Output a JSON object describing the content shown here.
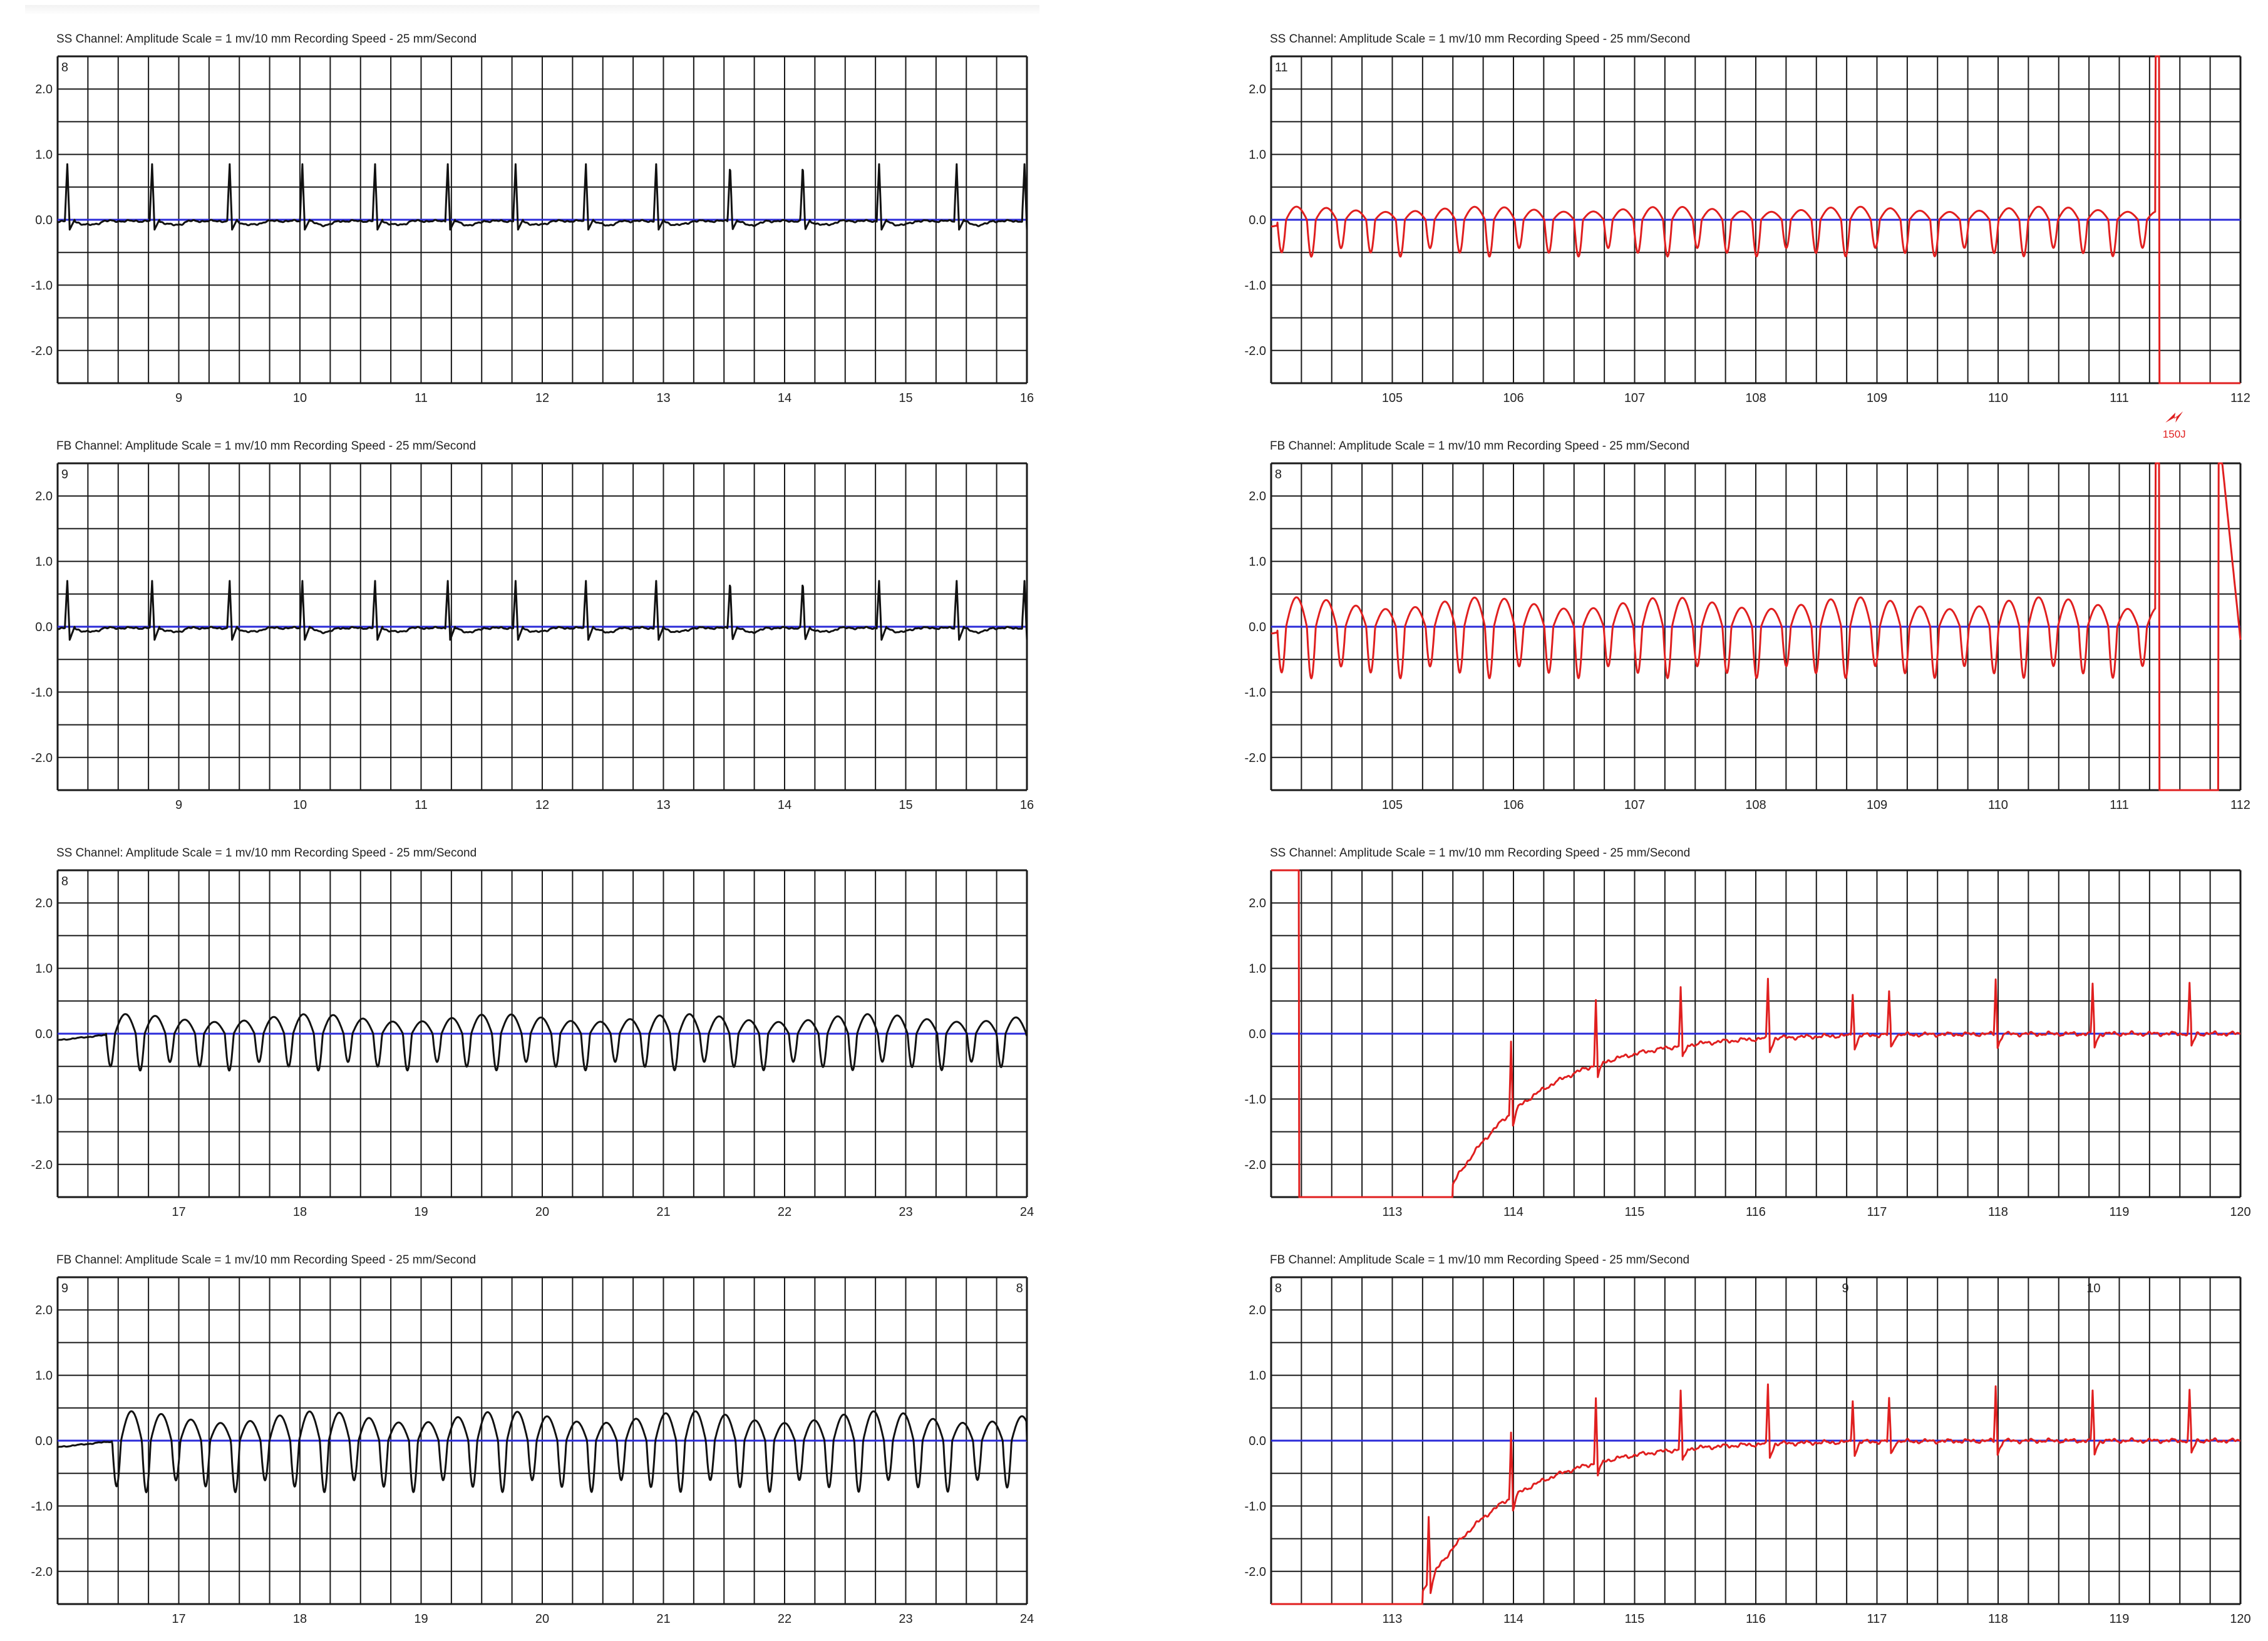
{
  "colors": {
    "grid": "#1a1a1a",
    "baseline": "#2b2bd9",
    "left_trace": "#111111",
    "right_trace": "#e01f1f",
    "marker": "#e01f1f"
  },
  "strips": [
    {
      "id": "left-1",
      "header": "SS Channel: Amplitude Scale = 1 mv/10 mm     Recording Speed - 25 mm/Second",
      "corner_labels": [
        {
          "text": "8",
          "t": 8.02
        }
      ],
      "y_ticks": [
        "2.0",
        "1.0",
        "0.0",
        "-1.0",
        "-2.0"
      ],
      "x_ticks": [
        "9",
        "10",
        "11",
        "12",
        "13",
        "14",
        "15",
        "16"
      ],
      "x_range": [
        8,
        16
      ],
      "y_range": [
        -2.5,
        2.5
      ],
      "trace": {
        "kind": "qrs",
        "beats": [
          8.08,
          8.78,
          9.42,
          10.02,
          10.62,
          11.22,
          11.78,
          12.36,
          12.94,
          13.55,
          14.15,
          14.78,
          15.42,
          15.98
        ],
        "amp": 0.85,
        "neg": -0.15
      }
    },
    {
      "id": "left-2",
      "header": "FB Channel: Amplitude Scale = 1 mv/10 mm     Recording Speed - 25 mm/Second",
      "corner_labels": [
        {
          "text": "9",
          "t": 8.02
        }
      ],
      "y_ticks": [
        "2.0",
        "1.0",
        "0.0",
        "-1.0",
        "-2.0"
      ],
      "x_ticks": [
        "9",
        "10",
        "11",
        "12",
        "13",
        "14",
        "15",
        "16"
      ],
      "x_range": [
        8,
        16
      ],
      "y_range": [
        -2.5,
        2.5
      ],
      "trace": {
        "kind": "qrs",
        "beats": [
          8.08,
          8.78,
          9.42,
          10.02,
          10.62,
          11.22,
          11.78,
          12.36,
          12.94,
          13.55,
          14.15,
          14.78,
          15.42,
          15.98
        ],
        "amp": 0.7,
        "neg": -0.2
      }
    },
    {
      "id": "left-3",
      "header": "SS Channel: Amplitude Scale = 1 mv/10 mm     Recording Speed - 25 mm/Second",
      "corner_labels": [
        {
          "text": "8",
          "t": 16.02
        }
      ],
      "y_ticks": [
        "2.0",
        "1.0",
        "0.0",
        "-1.0",
        "-2.0"
      ],
      "x_ticks": [
        "17",
        "18",
        "19",
        "20",
        "21",
        "22",
        "23",
        "24"
      ],
      "x_range": [
        16,
        24
      ],
      "y_range": [
        -2.5,
        2.5
      ],
      "trace": {
        "kind": "vt",
        "start": 16.4,
        "period": 0.245,
        "hi": 0.3,
        "lo": -0.5
      }
    },
    {
      "id": "left-4",
      "header": "FB Channel: Amplitude Scale = 1 mv/10 mm     Recording Speed - 25 mm/Second",
      "corner_labels": [
        {
          "text": "9",
          "t": 16.02
        },
        {
          "text": "8",
          "t": 23.9
        }
      ],
      "y_ticks": [
        "2.0",
        "1.0",
        "0.0",
        "-1.0",
        "-2.0"
      ],
      "x_ticks": [
        "17",
        "18",
        "19",
        "20",
        "21",
        "22",
        "23",
        "24"
      ],
      "x_range": [
        16,
        24
      ],
      "y_range": [
        -2.5,
        2.5
      ],
      "trace": {
        "kind": "vt",
        "start": 16.45,
        "period": 0.245,
        "hi": 0.45,
        "lo": -0.7
      }
    },
    {
      "id": "right-1",
      "header": "SS Channel: Amplitude Scale = 1 mv/10 mm     Recording Speed - 25 mm/Second",
      "corner_labels": [
        {
          "text": "11",
          "t": 104.02
        }
      ],
      "y_ticks": [
        "2.0",
        "1.0",
        "0.0",
        "-1.0",
        "-2.0"
      ],
      "x_ticks": [
        "105",
        "106",
        "107",
        "108",
        "109",
        "110",
        "111",
        "112"
      ],
      "x_range": [
        104,
        112
      ],
      "y_range": [
        -2.5,
        2.5
      ],
      "trace": {
        "kind": "vt_shock",
        "start": 104.05,
        "period": 0.245,
        "hi": 0.2,
        "lo": -0.5,
        "shock": 111.27,
        "end": 111.3
      },
      "marker": {
        "text": "150J",
        "t": 111.35
      }
    },
    {
      "id": "right-2",
      "header": "FB Channel: Amplitude Scale = 1 mv/10 mm     Recording Speed - 25 mm/Second",
      "corner_labels": [
        {
          "text": "8",
          "t": 104.02
        }
      ],
      "y_ticks": [
        "2.0",
        "1.0",
        "0.0",
        "-1.0",
        "-2.0"
      ],
      "x_ticks": [
        "105",
        "106",
        "107",
        "108",
        "109",
        "110",
        "111",
        "112"
      ],
      "x_range": [
        104,
        112
      ],
      "y_range": [
        -2.5,
        2.5
      ],
      "trace": {
        "kind": "vt_shock2",
        "start": 104.05,
        "period": 0.245,
        "hi": 0.45,
        "lo": -0.7,
        "shock": 111.27,
        "end": 111.3,
        "shock2": 111.82
      }
    },
    {
      "id": "right-3",
      "header": "SS Channel: Amplitude Scale = 1 mv/10 mm     Recording Speed - 25 mm/Second",
      "corner_labels": [],
      "y_ticks": [
        "2.0",
        "1.0",
        "0.0",
        "-1.0",
        "-2.0"
      ],
      "x_ticks": [
        "113",
        "114",
        "115",
        "116",
        "117",
        "118",
        "119",
        "120"
      ],
      "x_range": [
        112,
        120
      ],
      "y_range": [
        -2.5,
        2.5
      ],
      "trace": {
        "kind": "recovery",
        "drop": 112.15,
        "rise": 113.5,
        "beats": [
          113.98,
          114.68,
          115.38,
          116.1,
          116.8,
          117.1,
          117.98,
          118.78,
          119.58
        ],
        "amps": [
          1.1,
          1.0,
          0.9,
          0.9,
          0.65,
          0.65,
          0.85,
          0.75,
          0.75
        ],
        "start_high": true
      }
    },
    {
      "id": "right-4",
      "header": "FB Channel: Amplitude Scale = 1 mv/10 mm     Recording Speed - 25 mm/Second",
      "corner_labels": [
        {
          "text": "8",
          "t": 112.02
        },
        {
          "text": "9",
          "t": 116.7
        },
        {
          "text": "10",
          "t": 118.72
        }
      ],
      "y_ticks": [
        "2.0",
        "1.0",
        "0.0",
        "-1.0",
        "-2.0"
      ],
      "x_ticks": [
        "113",
        "114",
        "115",
        "116",
        "117",
        "118",
        "119",
        "120"
      ],
      "x_range": [
        112,
        120
      ],
      "y_range": [
        -2.5,
        2.5
      ],
      "trace": {
        "kind": "recovery",
        "drop": 112.0,
        "rise": 113.25,
        "beats": [
          113.3,
          113.98,
          114.68,
          115.38,
          116.1,
          116.8,
          117.1,
          117.98,
          118.78,
          119.58
        ],
        "amps": [
          1.0,
          1.0,
          1.0,
          0.9,
          0.9,
          0.65,
          0.65,
          0.85,
          0.75,
          0.75
        ],
        "start_high": false
      }
    }
  ],
  "chart_data": [
    {
      "type": "line",
      "title": "SS Channel: Amplitude Scale = 1 mv/10 mm     Recording Speed - 25 mm/Second",
      "xlim": [
        8,
        16
      ],
      "ylim": [
        -2.5,
        2.5
      ],
      "grid": true
    },
    {
      "type": "line",
      "title": "FB Channel: Amplitude Scale = 1 mv/10 mm     Recording Speed - 25 mm/Second",
      "xlim": [
        8,
        16
      ],
      "ylim": [
        -2.5,
        2.5
      ],
      "grid": true
    },
    {
      "type": "line",
      "title": "SS Channel: Amplitude Scale = 1 mv/10 mm     Recording Speed - 25 mm/Second",
      "xlim": [
        16,
        24
      ],
      "ylim": [
        -2.5,
        2.5
      ],
      "grid": true
    },
    {
      "type": "line",
      "title": "FB Channel: Amplitude Scale = 1 mv/10 mm     Recording Speed - 25 mm/Second",
      "xlim": [
        16,
        24
      ],
      "ylim": [
        -2.5,
        2.5
      ],
      "grid": true
    },
    {
      "type": "line",
      "title": "SS Channel: Amplitude Scale = 1 mv/10 mm     Recording Speed - 25 mm/Second",
      "xlim": [
        104,
        112
      ],
      "ylim": [
        -2.5,
        2.5
      ],
      "grid": true,
      "annotations": [
        "150J"
      ]
    },
    {
      "type": "line",
      "title": "FB Channel: Amplitude Scale = 1 mv/10 mm     Recording Speed - 25 mm/Second",
      "xlim": [
        104,
        112
      ],
      "ylim": [
        -2.5,
        2.5
      ],
      "grid": true
    },
    {
      "type": "line",
      "title": "SS Channel: Amplitude Scale = 1 mv/10 mm     Recording Speed - 25 mm/Second",
      "xlim": [
        112,
        120
      ],
      "ylim": [
        -2.5,
        2.5
      ],
      "grid": true
    },
    {
      "type": "line",
      "title": "FB Channel: Amplitude Scale = 1 mv/10 mm     Recording Speed - 25 mm/Second",
      "xlim": [
        112,
        120
      ],
      "ylim": [
        -2.5,
        2.5
      ],
      "grid": true
    }
  ]
}
